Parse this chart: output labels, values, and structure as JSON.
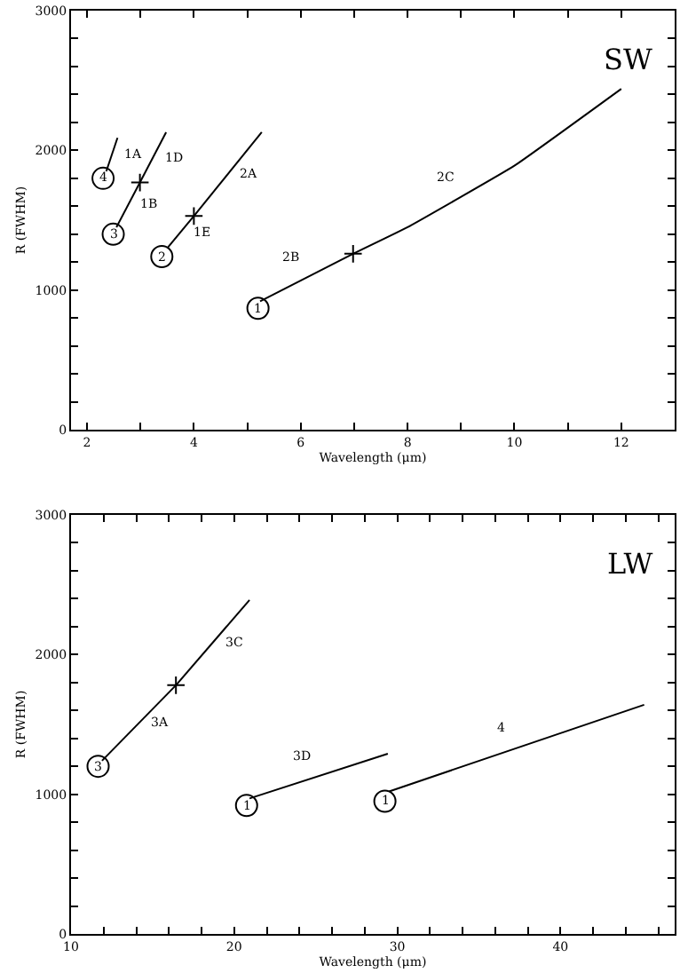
{
  "chart_data": [
    {
      "type": "line",
      "xlabel": "Wavelength (μm)",
      "ylabel": "R (FWHM)",
      "xlim": [
        1.7,
        13.0
      ],
      "ylim": [
        0,
        3000
      ],
      "xticks": [
        2,
        {
          "value": 3,
          "label": null
        },
        4,
        {
          "value": 5,
          "label": null
        },
        6,
        {
          "value": 7,
          "label": null
        },
        8,
        {
          "value": 9,
          "label": null
        },
        10,
        {
          "value": 11,
          "label": null
        },
        12
      ],
      "yticks": [
        0,
        {
          "value": 200,
          "label": null
        },
        {
          "value": 400,
          "label": null
        },
        {
          "value": 600,
          "label": null
        },
        {
          "value": 800,
          "label": null
        },
        1000,
        {
          "value": 1200,
          "label": null
        },
        {
          "value": 1400,
          "label": null
        },
        {
          "value": 1600,
          "label": null
        },
        {
          "value": 1800,
          "label": null
        },
        2000,
        {
          "value": 2200,
          "label": null
        },
        {
          "value": 2400,
          "label": null
        },
        {
          "value": 2600,
          "label": null
        },
        {
          "value": 2800,
          "label": null
        },
        3000
      ],
      "legend": false,
      "line_style": "solid",
      "series": [
        {
          "name": "1A",
          "color": "#000000",
          "x": [
            2.36,
            2.57
          ],
          "values": [
            1850,
            2090
          ]
        },
        {
          "name": "1B",
          "color": "#000000",
          "x": [
            2.55,
            2.99
          ],
          "values": [
            1450,
            1770
          ]
        },
        {
          "name": "1D",
          "color": "#000000",
          "x": [
            2.99,
            3.48
          ],
          "values": [
            1770,
            2130
          ]
        },
        {
          "name": "1E",
          "color": "#000000",
          "x": [
            3.5,
            4.0
          ],
          "values": [
            1300,
            1530
          ]
        },
        {
          "name": "2A",
          "color": "#000000",
          "x": [
            4.0,
            5.27
          ],
          "values": [
            1530,
            2130
          ]
        },
        {
          "name": "2B",
          "color": "#000000",
          "x": [
            5.24,
            6.98
          ],
          "values": [
            920,
            1260
          ]
        },
        {
          "name": "2C",
          "color": "#000000",
          "x": [
            6.98,
            8.0,
            10.0,
            12.0
          ],
          "values": [
            1260,
            1450,
            1890,
            2440
          ]
        },
        {
          "type": "scatter",
          "marker": "cross",
          "color": "#000000",
          "x": [
            2.99,
            4.0,
            6.98
          ],
          "values": [
            1770,
            1530,
            1260
          ]
        }
      ],
      "annotations": [
        "SW",
        {
          "text": "4",
          "x": 2.3,
          "y": 1800
        },
        {
          "text": "3",
          "x": 2.49,
          "y": 1400
        },
        {
          "text": "2",
          "x": 3.4,
          "y": 1240
        },
        {
          "text": "1",
          "x": 5.2,
          "y": 870
        }
      ]
    },
    {
      "type": "line",
      "xlabel": "Wavelength (μm)",
      "ylabel": "R (FWHM)",
      "xlim": [
        10,
        47
      ],
      "ylim": [
        0,
        3000
      ],
      "xticks": [
        10,
        {
          "value": 12,
          "label": null
        },
        {
          "value": 14,
          "label": null
        },
        {
          "value": 16,
          "label": null
        },
        {
          "value": 18,
          "label": null
        },
        20,
        {
          "value": 22,
          "label": null
        },
        {
          "value": 24,
          "label": null
        },
        {
          "value": 26,
          "label": null
        },
        {
          "value": 28,
          "label": null
        },
        30,
        {
          "value": 32,
          "label": null
        },
        {
          "value": 34,
          "label": null
        },
        {
          "value": 36,
          "label": null
        },
        {
          "value": 38,
          "label": null
        },
        40,
        {
          "value": 42,
          "label": null
        },
        {
          "value": 44,
          "label": null
        },
        {
          "value": 46,
          "label": null
        }
      ],
      "yticks": [
        0,
        {
          "value": 200,
          "label": null
        },
        {
          "value": 400,
          "label": null
        },
        {
          "value": 600,
          "label": null
        },
        {
          "value": 800,
          "label": null
        },
        1000,
        {
          "value": 1200,
          "label": null
        },
        {
          "value": 1400,
          "label": null
        },
        {
          "value": 1600,
          "label": null
        },
        {
          "value": 1800,
          "label": null
        },
        2000,
        {
          "value": 2200,
          "label": null
        },
        {
          "value": 2400,
          "label": null
        },
        {
          "value": 2600,
          "label": null
        },
        {
          "value": 2800,
          "label": null
        },
        3000
      ],
      "legend": false,
      "line_style": "solid",
      "series": [
        {
          "name": "3A",
          "color": "#000000",
          "x": [
            11.9,
            16.43
          ],
          "values": [
            1240,
            1780
          ]
        },
        {
          "name": "3C",
          "color": "#000000",
          "x": [
            16.43,
            20.94
          ],
          "values": [
            1780,
            2390
          ]
        },
        {
          "name": "3D",
          "color": "#000000",
          "x": [
            20.94,
            29.42
          ],
          "values": [
            970,
            1290
          ]
        },
        {
          "name": "4",
          "color": "#000000",
          "x": [
            29.5,
            45.13
          ],
          "values": [
            1020,
            1640
          ]
        },
        {
          "type": "scatter",
          "marker": "cross",
          "color": "#000000",
          "x": [
            16.43
          ],
          "values": [
            1780
          ]
        }
      ],
      "annotations": [
        "LW",
        {
          "text": "3",
          "x": 11.66,
          "y": 1200
        },
        {
          "text": "1",
          "x": 20.76,
          "y": 920
        },
        {
          "text": "1",
          "x": 29.24,
          "y": 950
        }
      ]
    }
  ]
}
